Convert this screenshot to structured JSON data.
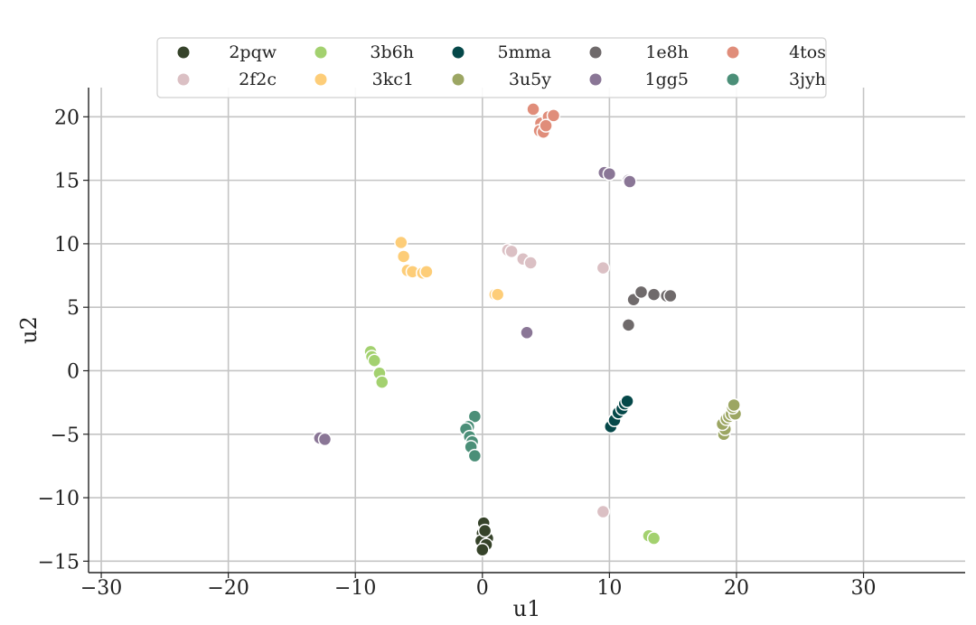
{
  "chart_data": {
    "type": "scatter",
    "title": "",
    "xlabel": "u1",
    "ylabel": "u2",
    "xlim": [
      -31,
      38
    ],
    "ylim": [
      -15.9,
      22.3
    ],
    "xticks": [
      -30,
      -20,
      -10,
      0,
      10,
      20,
      30
    ],
    "yticks": [
      -15,
      -10,
      -5,
      0,
      5,
      10,
      15,
      20
    ],
    "xtick_labels": [
      "−30",
      "−20",
      "−10",
      "0",
      "10",
      "20",
      "30"
    ],
    "ytick_labels": [
      "−15",
      "−10",
      "−5",
      "0",
      "5",
      "10",
      "15",
      "20"
    ],
    "grid": true,
    "legend_position": "top-center",
    "series": [
      {
        "name": "2pqw",
        "color": "#36432a",
        "points": [
          [
            0.1,
            -12.0
          ],
          [
            0.0,
            -12.8
          ],
          [
            0.4,
            -13.2
          ],
          [
            -0.1,
            -13.4
          ],
          [
            0.3,
            -13.7
          ],
          [
            0.0,
            -14.1
          ],
          [
            0.2,
            -12.6
          ]
        ]
      },
      {
        "name": "2f2c",
        "color": "#dbc0c4",
        "points": [
          [
            2.0,
            9.5
          ],
          [
            2.3,
            9.4
          ],
          [
            3.2,
            8.8
          ],
          [
            3.8,
            8.5
          ],
          [
            9.5,
            8.1
          ],
          [
            9.5,
            -11.1
          ]
        ]
      },
      {
        "name": "3b6h",
        "color": "#a3d16f",
        "points": [
          [
            -8.8,
            1.5
          ],
          [
            -8.7,
            1.1
          ],
          [
            -8.5,
            0.8
          ],
          [
            -8.1,
            -0.2
          ],
          [
            -7.9,
            -0.9
          ],
          [
            13.1,
            -13.0
          ],
          [
            13.5,
            -13.2
          ]
        ]
      },
      {
        "name": "3kc1",
        "color": "#fdcd78",
        "points": [
          [
            -6.4,
            10.1
          ],
          [
            -6.2,
            9.0
          ],
          [
            -5.9,
            7.9
          ],
          [
            -5.5,
            7.8
          ],
          [
            -4.7,
            7.7
          ],
          [
            -4.4,
            7.8
          ],
          [
            1.0,
            6.0
          ],
          [
            1.2,
            6.0
          ]
        ]
      },
      {
        "name": "5mma",
        "color": "#054849",
        "points": [
          [
            10.1,
            -4.4
          ],
          [
            10.4,
            -3.9
          ],
          [
            10.7,
            -3.3
          ],
          [
            11.0,
            -3.0
          ],
          [
            11.2,
            -2.6
          ],
          [
            11.4,
            -2.4
          ]
        ]
      },
      {
        "name": "3u5y",
        "color": "#9ca663",
        "points": [
          [
            19.0,
            -5.0
          ],
          [
            19.1,
            -4.6
          ],
          [
            18.9,
            -4.2
          ],
          [
            19.2,
            -3.8
          ],
          [
            19.4,
            -3.6
          ],
          [
            19.6,
            -3.4
          ],
          [
            19.9,
            -3.4
          ],
          [
            19.7,
            -2.9
          ],
          [
            19.8,
            -2.7
          ]
        ]
      },
      {
        "name": "1e8h",
        "color": "#6f6a6b",
        "points": [
          [
            11.9,
            5.6
          ],
          [
            12.5,
            6.2
          ],
          [
            13.5,
            6.0
          ],
          [
            14.5,
            5.9
          ],
          [
            14.8,
            5.9
          ],
          [
            11.5,
            3.6
          ]
        ]
      },
      {
        "name": "1gg5",
        "color": "#8a7696",
        "points": [
          [
            9.6,
            15.6
          ],
          [
            10.0,
            15.5
          ],
          [
            11.5,
            15.0
          ],
          [
            11.6,
            14.9
          ],
          [
            3.5,
            3.0
          ],
          [
            -12.8,
            -5.3
          ],
          [
            -12.4,
            -5.4
          ]
        ]
      },
      {
        "name": "4tos",
        "color": "#e08d7a",
        "points": [
          [
            4.0,
            20.6
          ],
          [
            4.6,
            19.5
          ],
          [
            5.2,
            20.0
          ],
          [
            5.6,
            20.1
          ],
          [
            4.5,
            18.9
          ],
          [
            4.8,
            18.8
          ],
          [
            5.0,
            19.3
          ]
        ]
      },
      {
        "name": "3jyh",
        "color": "#4b8f78",
        "points": [
          [
            -0.6,
            -3.6
          ],
          [
            -1.1,
            -4.4
          ],
          [
            -1.3,
            -4.6
          ],
          [
            -1.0,
            -5.2
          ],
          [
            -0.8,
            -5.6
          ],
          [
            -0.9,
            -6.0
          ],
          [
            -0.6,
            -6.7
          ]
        ]
      }
    ]
  }
}
